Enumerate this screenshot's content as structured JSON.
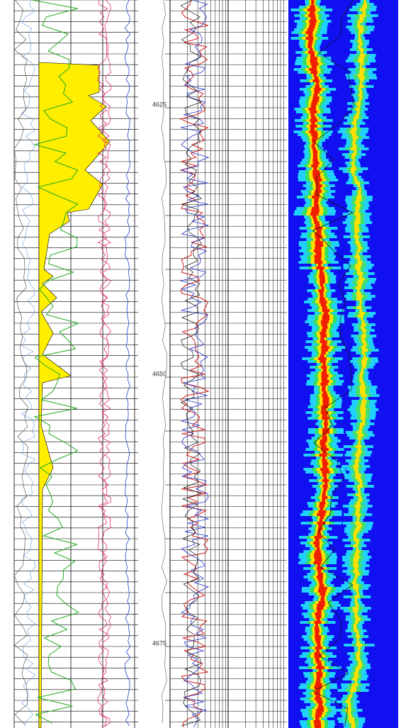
{
  "depth_track": {
    "labels": [
      "4625",
      "4650",
      "4675"
    ]
  }
}
